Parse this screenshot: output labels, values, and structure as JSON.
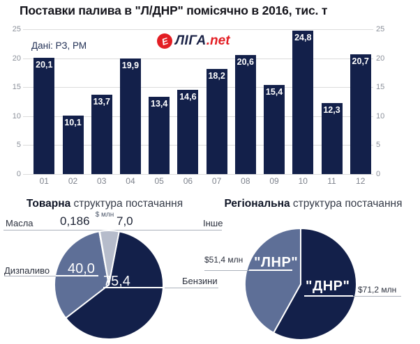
{
  "title": "Поставки палива в \"Л/ДНР\" помісячно в 2016, тис. т",
  "source_note": "Дані: РЗ, РМ",
  "logo": {
    "name": "ЛІГА",
    "suffix": ".net",
    "icon": "liga-red-circle"
  },
  "colors": {
    "navy": "#13204a",
    "slate": "#5e6f97",
    "light": "#b6bccb",
    "hairline": "#e8eaef",
    "red": "#e31e24",
    "grid": "#dcdcdc"
  },
  "sections": {
    "product": {
      "title_bold": "Товарна",
      "title_rest": " структура постачання",
      "unit": "$ млн"
    },
    "region": {
      "title_bold": "Регіональна",
      "title_rest": " структура постачання"
    }
  },
  "chart_data": [
    {
      "type": "bar",
      "title": "Поставки палива в \"Л/ДНР\" помісячно в 2016, тис. т",
      "categories": [
        "01",
        "02",
        "03",
        "04",
        "05",
        "06",
        "07",
        "08",
        "09",
        "10",
        "11",
        "12"
      ],
      "values": [
        20.1,
        10.1,
        13.7,
        19.9,
        13.4,
        14.6,
        18.2,
        20.6,
        15.4,
        24.8,
        12.3,
        20.7
      ],
      "value_labels": [
        "20,1",
        "10,1",
        "13,7",
        "19,9",
        "13,4",
        "14,6",
        "18,2",
        "20,6",
        "15,4",
        "24,8",
        "12,3",
        "20,7"
      ],
      "xlabel": "",
      "ylabel": "",
      "ylim": [
        0,
        25
      ],
      "yticks": [
        0,
        5,
        10,
        15,
        20,
        25
      ],
      "grid": true,
      "legend": false,
      "bar_color_key": "navy"
    },
    {
      "type": "pie",
      "title": "Товарна структура постачання",
      "unit": "$ млн",
      "slices": [
        {
          "label": "Бензини",
          "value": 75.4,
          "display": "75,4",
          "color_key": "navy"
        },
        {
          "label": "Дизпаливо",
          "value": 40.0,
          "display": "40,0",
          "color_key": "slate"
        },
        {
          "label": "Масла",
          "value": 0.186,
          "display": "0,186",
          "color_key": "hairline"
        },
        {
          "label": "Інше",
          "value": 7.0,
          "display": "7,0",
          "color_key": "light"
        }
      ]
    },
    {
      "type": "pie",
      "title": "Регіональна структура постачання",
      "slices": [
        {
          "label": "\"ДНР\"",
          "value": 71.2,
          "display": "$71,2 млн",
          "color_key": "navy"
        },
        {
          "label": "\"ЛНР\"",
          "value": 51.4,
          "display": "$51,4 млн",
          "color_key": "slate"
        }
      ]
    }
  ]
}
